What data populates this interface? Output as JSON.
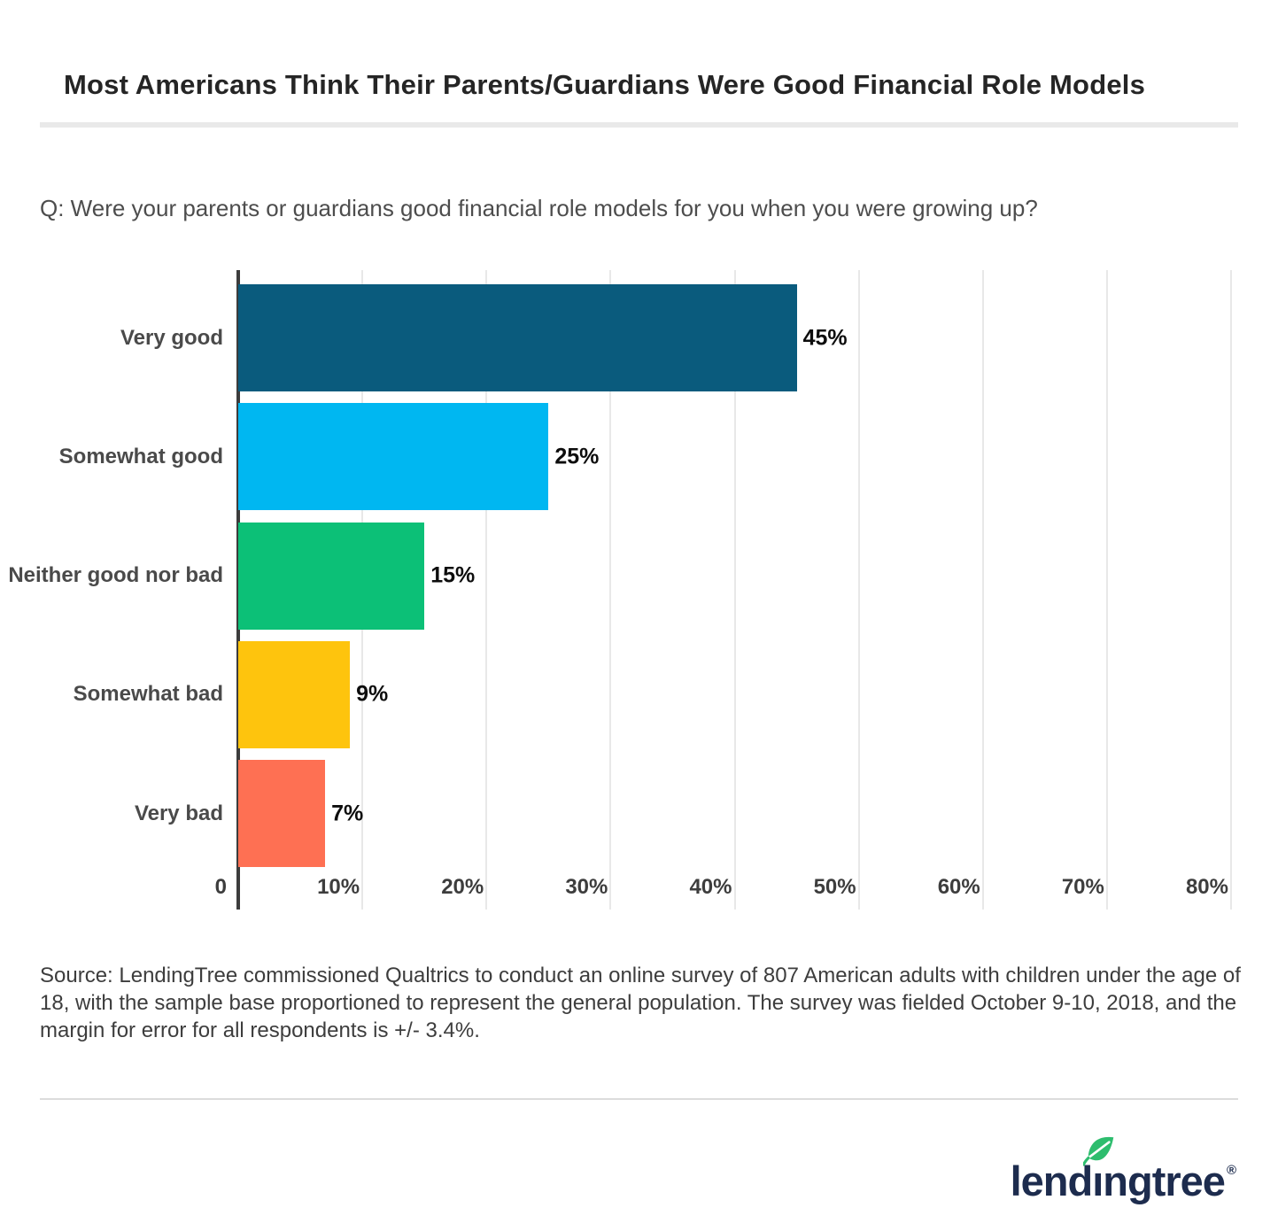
{
  "header": {
    "title": "Most Americans Think Their Parents/Guardians Were Good Financial Role Models"
  },
  "question": {
    "text": "Q: Were your parents or guardians good financial role models for you when you were growing up?"
  },
  "chart_data": {
    "type": "bar",
    "orientation": "horizontal",
    "title": "Most Americans Think Their Parents/Guardians Were Good Financial Role Models",
    "categories": [
      "Very good",
      "Somewhat good",
      "Neither good nor bad",
      "Somewhat bad",
      "Very bad"
    ],
    "values": [
      45,
      25,
      15,
      9,
      7
    ],
    "value_labels": [
      "45%",
      "25%",
      "15%",
      "9%",
      "7%"
    ],
    "bar_colors": [
      "#0a5b7d",
      "#00b7f1",
      "#0cc077",
      "#fec40d",
      "#fe7053"
    ],
    "x_ticks": [
      "0",
      "10%",
      "20%",
      "30%",
      "40%",
      "50%",
      "60%",
      "70%",
      "80%"
    ],
    "xlim": [
      0,
      80
    ],
    "xlabel": "",
    "ylabel": "",
    "grid": "vertical",
    "gridline_color": "#e8e8e8",
    "axis_color": "#3c3c3c",
    "legend": "none"
  },
  "source": {
    "text": "Source: LendingTree commissioned Qualtrics to conduct an online survey of 807 American adults with children under the age of 18, with the sample base proportioned to represent the general population. The survey was fielded October 9-10, 2018, and the margin for error for all respondents is +/- 3.4%."
  },
  "logo": {
    "brand": "lendingtree",
    "registered": "®",
    "leaf_color": "#2ebd6e",
    "text_color": "#1d2c4e"
  }
}
